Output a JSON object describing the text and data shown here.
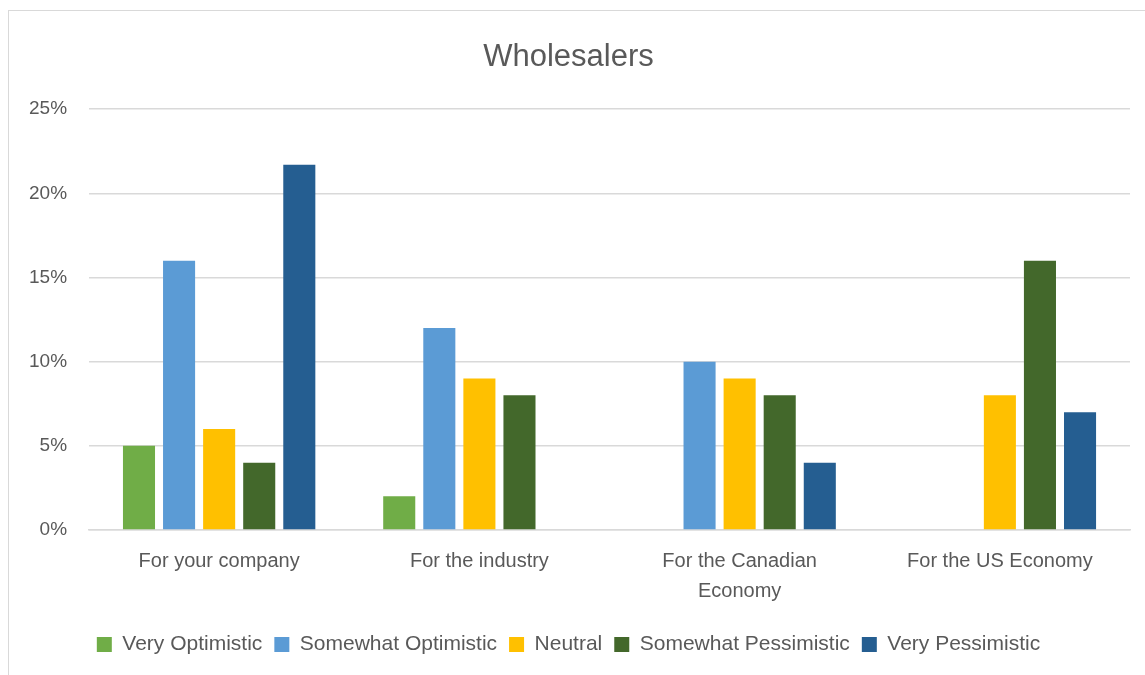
{
  "chart_data": {
    "type": "bar",
    "title": "Wholesalers",
    "categories": [
      "For your company",
      "For the industry",
      "For the Canadian Economy",
      "For the US Economy"
    ],
    "series": [
      {
        "name": "Very Optimistic",
        "color": "#70ad47",
        "values": [
          5,
          2,
          0,
          0
        ]
      },
      {
        "name": "Somewhat Optimistic",
        "color": "#5b9bd5",
        "values": [
          16,
          12,
          10,
          0
        ]
      },
      {
        "name": "Neutral",
        "color": "#ffc000",
        "values": [
          6,
          9,
          9,
          8
        ]
      },
      {
        "name": "Somewhat Pessimistic",
        "color": "#43682b",
        "values": [
          4,
          8,
          8,
          16
        ]
      },
      {
        "name": "Very Pessimistic",
        "color": "#255e91",
        "values": [
          21.7,
          0,
          4,
          7
        ]
      }
    ],
    "ylim": [
      0,
      25
    ],
    "yticks": [
      {
        "value": 0,
        "label": "0%"
      },
      {
        "value": 5,
        "label": "5%"
      },
      {
        "value": 10,
        "label": "10%"
      },
      {
        "value": 15,
        "label": "15%"
      },
      {
        "value": 20,
        "label": "20%"
      },
      {
        "value": 25,
        "label": "25%"
      }
    ],
    "grid": "y",
    "legend": "bottom"
  }
}
